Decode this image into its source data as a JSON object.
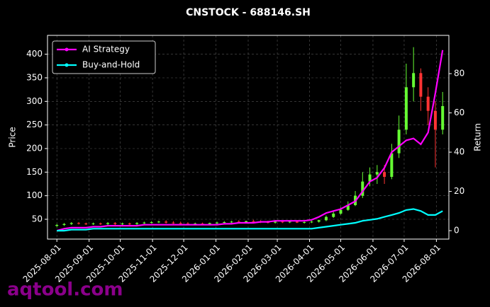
{
  "chart_data": {
    "type": "candlestick",
    "title": "CNSTOCK - 688146.SH",
    "ylabel": "Price",
    "y2label": "Return",
    "watermark": "aqtool.com",
    "x": [
      "2025-08-01",
      "2025-08-08",
      "2025-08-15",
      "2025-08-22",
      "2025-08-29",
      "2025-09-05",
      "2025-09-12",
      "2025-09-19",
      "2025-09-26",
      "2025-10-03",
      "2025-10-10",
      "2025-10-17",
      "2025-10-24",
      "2025-10-31",
      "2025-11-07",
      "2025-11-14",
      "2025-11-21",
      "2025-11-28",
      "2025-12-05",
      "2025-12-12",
      "2025-12-19",
      "2025-12-26",
      "2026-01-02",
      "2026-01-09",
      "2026-01-16",
      "2026-01-23",
      "2026-01-30",
      "2026-02-06",
      "2026-02-13",
      "2026-02-20",
      "2026-02-27",
      "2026-03-06",
      "2026-03-13",
      "2026-03-20",
      "2026-03-27",
      "2026-04-03",
      "2026-04-10",
      "2026-04-17",
      "2026-04-24",
      "2026-05-01",
      "2026-05-08",
      "2026-05-15",
      "2026-05-22",
      "2026-05-29",
      "2026-06-05",
      "2026-06-12",
      "2026-06-19",
      "2026-06-26",
      "2026-07-03",
      "2026-07-10",
      "2026-07-17",
      "2026-07-24",
      "2026-07-31",
      "2026-08-07"
    ],
    "open": [
      36,
      38,
      40,
      42,
      41,
      40,
      41,
      40,
      42,
      40,
      41,
      40,
      42,
      43,
      44,
      45,
      43,
      42,
      41,
      40,
      41,
      40,
      42,
      43,
      44,
      45,
      44,
      46,
      45,
      44,
      43,
      45,
      44,
      45,
      43,
      44,
      45,
      48,
      55,
      62,
      70,
      80,
      100,
      130,
      145,
      150,
      140,
      190,
      240,
      330,
      360,
      310,
      280,
      240
    ],
    "high": [
      40,
      42,
      44,
      44,
      43,
      43,
      43,
      44,
      44,
      43,
      43,
      44,
      45,
      46,
      47,
      48,
      46,
      45,
      44,
      43,
      43,
      43,
      45,
      46,
      47,
      48,
      47,
      49,
      48,
      47,
      46,
      47,
      47,
      48,
      46,
      47,
      49,
      58,
      66,
      75,
      88,
      110,
      150,
      160,
      165,
      165,
      210,
      270,
      380,
      415,
      370,
      330,
      300,
      320
    ],
    "low": [
      34,
      36,
      38,
      39,
      38,
      38,
      38,
      38,
      38,
      38,
      38,
      38,
      40,
      41,
      42,
      41,
      40,
      39,
      38,
      38,
      38,
      38,
      39,
      41,
      42,
      42,
      42,
      43,
      42,
      41,
      41,
      42,
      42,
      42,
      41,
      42,
      43,
      46,
      53,
      60,
      68,
      78,
      95,
      120,
      125,
      125,
      135,
      180,
      230,
      300,
      280,
      250,
      160,
      230
    ],
    "close": [
      38,
      40,
      42,
      41,
      40,
      41,
      40,
      42,
      40,
      41,
      40,
      42,
      43,
      44,
      45,
      43,
      42,
      41,
      40,
      41,
      40,
      42,
      43,
      44,
      45,
      44,
      46,
      45,
      44,
      43,
      45,
      44,
      45,
      43,
      44,
      45,
      48,
      55,
      62,
      70,
      80,
      100,
      130,
      145,
      150,
      140,
      190,
      240,
      330,
      360,
      310,
      280,
      240,
      290
    ],
    "up_color": "#66ff33",
    "down_color": "#ff3333",
    "series": [
      {
        "name": "AI Strategy",
        "color": "#ff00ff",
        "axis": "y2",
        "values": [
          0,
          1,
          1.5,
          1.5,
          1.5,
          2,
          2,
          2.5,
          2.5,
          2.5,
          2.5,
          2.5,
          3,
          3,
          3,
          3,
          3,
          3,
          3,
          3,
          3,
          3,
          3,
          3.5,
          3.5,
          4,
          4,
          4,
          4.5,
          4.5,
          5,
          5,
          5,
          5,
          5,
          5.5,
          7,
          9,
          10,
          11,
          13,
          15,
          20,
          25,
          27,
          32,
          40,
          43,
          46,
          47,
          44,
          50,
          70,
          92
        ]
      },
      {
        "name": "Buy-and-Hold",
        "color": "#00ffff",
        "axis": "y2",
        "values": [
          0,
          0,
          0.5,
          0.5,
          0.5,
          1,
          1,
          1,
          1,
          1,
          1,
          1,
          1,
          1,
          1,
          1,
          1,
          1,
          1,
          1,
          1,
          1,
          1,
          1,
          1,
          1,
          1,
          1,
          1,
          1,
          1,
          1,
          1,
          1,
          1,
          1,
          1.5,
          2,
          2.5,
          3,
          3.5,
          4,
          5,
          5.5,
          6,
          7,
          8,
          9,
          10.5,
          11,
          10,
          8,
          8,
          10
        ]
      }
    ],
    "xlim": [
      "2025-07-23",
      "2026-08-13"
    ],
    "xticks": [
      "2025-08-01",
      "2025-09-01",
      "2025-10-01",
      "2025-11-01",
      "2025-12-01",
      "2026-01-01",
      "2026-02-01",
      "2026-03-01",
      "2026-04-01",
      "2026-05-01",
      "2026-06-01",
      "2026-07-01",
      "2026-08-01"
    ],
    "ylim": [
      8,
      440
    ],
    "yticks": [
      50,
      100,
      150,
      200,
      250,
      300,
      350,
      400
    ],
    "y2lim": [
      -4.3,
      99.5
    ],
    "y2ticks": [
      0,
      20,
      40,
      60,
      80
    ],
    "grid": true,
    "legend": "upper left"
  }
}
